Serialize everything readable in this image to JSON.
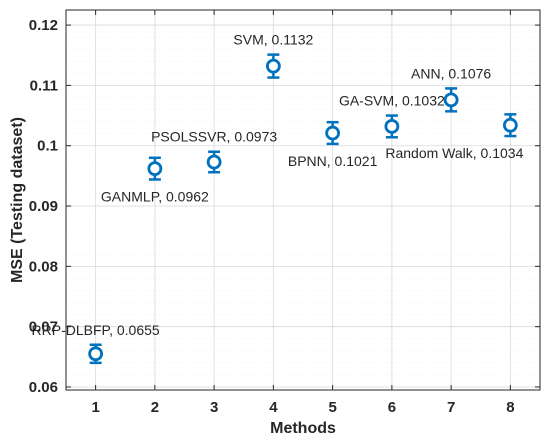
{
  "chart_data": {
    "type": "scatter",
    "xlabel": "Methods",
    "ylabel": "MSE (Testing dataset)",
    "xlim": [
      0.5,
      8.5
    ],
    "ylim": [
      0.0595,
      0.1225
    ],
    "xticks": [
      1,
      2,
      3,
      4,
      5,
      6,
      7,
      8
    ],
    "xtick_labels": [
      "1",
      "2",
      "3",
      "4",
      "5",
      "6",
      "7",
      "8"
    ],
    "yticks": [
      0.06,
      0.07,
      0.08,
      0.09,
      0.1,
      0.11,
      0.12
    ],
    "ytick_labels": [
      "0.06",
      "0.07",
      "0.08",
      "0.09",
      "0.1",
      "0.11",
      "0.12"
    ],
    "grid": true,
    "marker": "open-circle-with-error-bars",
    "color": "#0072BD",
    "points": [
      {
        "x": 1,
        "y": 0.0655,
        "err": 0.0015,
        "label": "RRP-DLBFP, 0.0655",
        "label_pos": "above"
      },
      {
        "x": 2,
        "y": 0.0962,
        "err": 0.0018,
        "label": "GANMLP, 0.0962",
        "label_pos": "below"
      },
      {
        "x": 3,
        "y": 0.0973,
        "err": 0.0017,
        "label": "PSOLSSVR, 0.0973",
        "label_pos": "above"
      },
      {
        "x": 4,
        "y": 0.1132,
        "err": 0.0019,
        "label": "SVM, 0.1132",
        "label_pos": "above"
      },
      {
        "x": 5,
        "y": 0.1021,
        "err": 0.0018,
        "label": "BPNN, 0.1021",
        "label_pos": "below"
      },
      {
        "x": 6,
        "y": 0.1032,
        "err": 0.0018,
        "label": "GA-SVM, 0.1032",
        "label_pos": "above"
      },
      {
        "x": 7,
        "y": 0.1076,
        "err": 0.0019,
        "label": "ANN, 0.1076",
        "label_pos": "above"
      },
      {
        "x": 8,
        "y": 0.1034,
        "err": 0.0018,
        "label": "Random Walk, 0.1034",
        "label_pos": "below"
      }
    ]
  }
}
